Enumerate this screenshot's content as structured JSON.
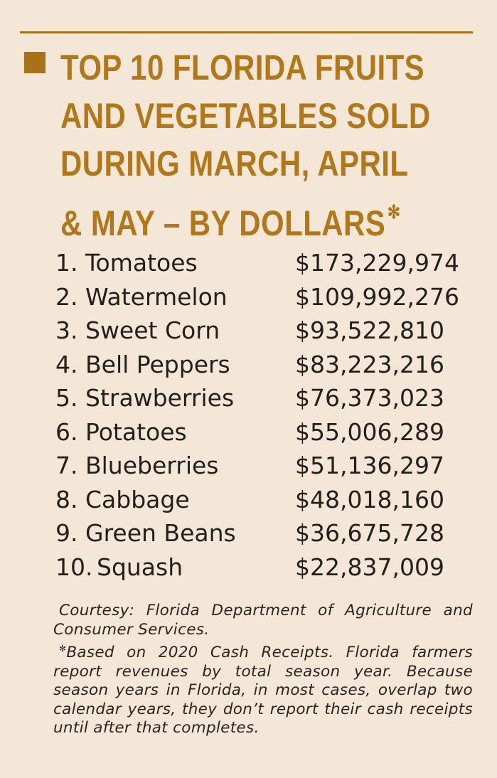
{
  "header": {
    "title_lines": [
      "TOP 10 FLORIDA FRUITS",
      "AND VEGETABLES SOLD",
      "DURING MARCH, APRIL",
      "& MAY – BY DOLLARS"
    ],
    "title_marker": "✻"
  },
  "list": {
    "items": [
      {
        "rank": "1.",
        "name": "Tomatoes",
        "value": "$173,229,974"
      },
      {
        "rank": "2.",
        "name": "Watermelon",
        "value": "$109,992,276"
      },
      {
        "rank": "3.",
        "name": "Sweet Corn",
        "value": "$93,522,810"
      },
      {
        "rank": "4.",
        "name": "Bell Peppers",
        "value": "$83,223,216"
      },
      {
        "rank": "5.",
        "name": "Strawberries",
        "value": "$76,373,023"
      },
      {
        "rank": "6.",
        "name": "Potatoes",
        "value": "$55,006,289"
      },
      {
        "rank": "7.",
        "name": "Blueberries",
        "value": "$51,136,297"
      },
      {
        "rank": "8.",
        "name": "Cabbage",
        "value": "$48,018,160"
      },
      {
        "rank": "9.",
        "name": "Green Beans",
        "value": "$36,675,728"
      },
      {
        "rank": "10.",
        "name": "Squash",
        "value": "$22,837,009"
      }
    ]
  },
  "footnote": {
    "courtesy": "Courtesy: Florida Department of Agriculture and Consumer Services.",
    "marker": "✻",
    "note": "Based on 2020 Cash Receipts. Florida farmers report revenues by total season year. Because season years in Florida, in most cases, overlap two calendar years, they don’t report their cash receipts until after that completes."
  }
}
